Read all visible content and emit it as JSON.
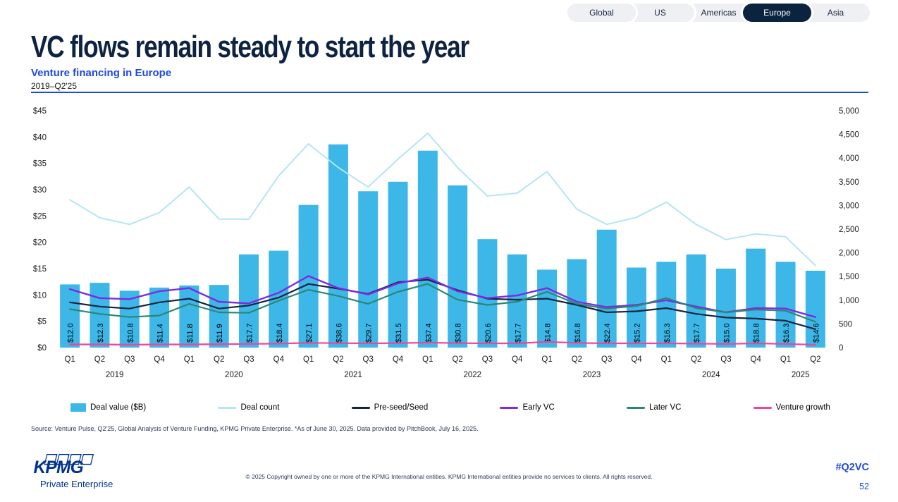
{
  "tabs": [
    {
      "label": "Global",
      "active": false
    },
    {
      "label": "US",
      "active": false
    },
    {
      "label": "Americas",
      "active": false
    },
    {
      "label": "Europe",
      "active": true
    },
    {
      "label": "Asia",
      "active": false
    }
  ],
  "header": {
    "title": "VC flows remain steady to start the year",
    "subtitle": "Venture financing in Europe",
    "period": "2019–Q2'25"
  },
  "colors": {
    "bar_blue": "#3cb7e8",
    "deal_count_blue": "#b5e4f7",
    "preseed_navy": "#16243d",
    "early_vc_purple": "#7c2be0",
    "later_vc_teal": "#2d8673",
    "venture_growth_pink": "#f5419f",
    "accent_blue": "#1e49e0",
    "kpmg_blue": "#00338d",
    "tab_active_navy": "#0c2340",
    "title_navy": "#0e2342"
  },
  "chart_data": {
    "type": "bar+line combo",
    "x_quarter_labels": [
      "Q1",
      "Q2",
      "Q3",
      "Q4",
      "Q1",
      "Q2",
      "Q3",
      "Q4",
      "Q1",
      "Q2",
      "Q3",
      "Q4",
      "Q1",
      "Q2",
      "Q3",
      "Q4",
      "Q1",
      "Q2",
      "Q3",
      "Q4",
      "Q1",
      "Q2",
      "Q3",
      "Q4",
      "Q1",
      "Q2"
    ],
    "x_year_groups": [
      {
        "label": "2019",
        "count": 4
      },
      {
        "label": "2020",
        "count": 4
      },
      {
        "label": "2021",
        "count": 4
      },
      {
        "label": "2022",
        "count": 4
      },
      {
        "label": "2023",
        "count": 4
      },
      {
        "label": "2024",
        "count": 4
      },
      {
        "label": "2025",
        "count": 2
      }
    ],
    "left_axis": {
      "min": 0,
      "max": 45,
      "ticks": [
        "$0",
        "$5",
        "$10",
        "$15",
        "$20",
        "$25",
        "$30",
        "$35",
        "$40",
        "$45"
      ]
    },
    "right_axis": {
      "min": 0,
      "max": 5000,
      "ticks": [
        "0",
        "500",
        "1,000",
        "1,500",
        "2,000",
        "2,500",
        "3,000",
        "3,500",
        "4,000",
        "4,500",
        "5,000"
      ]
    },
    "bars": {
      "name": "Deal value ($B)",
      "color": "#3cb7e8",
      "values": [
        12.0,
        12.3,
        10.8,
        11.4,
        11.8,
        11.9,
        17.7,
        18.4,
        27.1,
        38.6,
        29.7,
        31.5,
        37.4,
        30.8,
        20.6,
        17.7,
        14.8,
        16.8,
        22.4,
        15.2,
        16.3,
        17.7,
        15.0,
        18.8,
        16.3,
        14.6
      ],
      "labels": [
        "$12.0",
        "$12.3",
        "$10.8",
        "$11.4",
        "$11.8",
        "$11.9",
        "$17.7",
        "$18.4",
        "$27.1",
        "$38.6",
        "$29.7",
        "$31.5",
        "$37.4",
        "$30.8",
        "$20.6",
        "$17.7",
        "$14.8",
        "$16.8",
        "$22.4",
        "$15.2",
        "$16.3",
        "$17.7",
        "$15.0",
        "$18.8",
        "$16.3",
        "$14.6"
      ]
    },
    "lines": [
      {
        "name": "Deal count",
        "axis": "right",
        "color": "#b5e4f7",
        "width": 2,
        "values": [
          3120,
          2740,
          2600,
          2850,
          3390,
          2715,
          2710,
          3625,
          4300,
          3800,
          3390,
          3975,
          4525,
          3800,
          3200,
          3260,
          3715,
          2920,
          2600,
          2750,
          3070,
          2600,
          2280,
          2400,
          2340,
          1730
        ]
      },
      {
        "name": "Pre-seed/Seed",
        "axis": "left",
        "color": "#16243d",
        "width": 2.2,
        "values": [
          8.6,
          7.8,
          7.4,
          8.6,
          9.3,
          7.4,
          8.0,
          9.5,
          12.1,
          11.2,
          10.2,
          12.4,
          12.9,
          10.9,
          9.3,
          9.1,
          9.3,
          8.1,
          6.7,
          6.9,
          7.5,
          6.4,
          5.7,
          5.5,
          5.1,
          3.5
        ]
      },
      {
        "name": "Early VC",
        "axis": "left",
        "color": "#7c2be0",
        "width": 2.4,
        "values": [
          11.1,
          9.4,
          9.2,
          10.7,
          11.3,
          8.7,
          8.4,
          10.4,
          13.6,
          11.3,
          10.1,
          12.2,
          13.3,
          10.7,
          9.4,
          9.9,
          11.3,
          8.7,
          7.7,
          8.1,
          9.0,
          7.8,
          6.7,
          7.5,
          7.4,
          5.8
        ]
      },
      {
        "name": "Later VC",
        "axis": "left",
        "color": "#2d8673",
        "width": 2.2,
        "values": [
          7.3,
          6.4,
          5.8,
          6.1,
          8.3,
          6.7,
          6.6,
          8.9,
          11.0,
          9.8,
          8.3,
          10.6,
          12.1,
          9.1,
          8.1,
          8.7,
          10.6,
          8.3,
          7.4,
          7.9,
          9.4,
          7.5,
          6.7,
          7.2,
          7.0,
          4.9
        ]
      },
      {
        "name": "Venture growth",
        "axis": "left",
        "color": "#f5419f",
        "width": 2.2,
        "values": [
          0.6,
          0.6,
          0.55,
          0.6,
          0.6,
          0.65,
          0.7,
          0.75,
          0.9,
          0.85,
          0.8,
          0.85,
          0.95,
          0.85,
          0.8,
          0.8,
          1.1,
          0.9,
          0.8,
          0.8,
          0.8,
          0.75,
          0.7,
          0.8,
          0.7,
          0.55
        ]
      }
    ]
  },
  "legend": {
    "items": [
      {
        "label": "Deal value ($B)",
        "swatch": "bar",
        "color": "#3cb7e8"
      },
      {
        "label": "Deal count",
        "swatch": "line",
        "color": "#b5e4f7"
      },
      {
        "label": "Pre-seed/Seed",
        "swatch": "line",
        "color": "#16243d"
      },
      {
        "label": "Early VC",
        "swatch": "line",
        "color": "#7c2be0"
      },
      {
        "label": "Later VC",
        "swatch": "line",
        "color": "#2d8673"
      },
      {
        "label": "Venture growth",
        "swatch": "line",
        "color": "#f5419f"
      }
    ]
  },
  "source": "Source: Venture Pulse, Q2'25, Global Analysis of Venture Funding, KPMG Private Enterprise. *As of June 30, 2025. Data provided by PitchBook, July 16, 2025.",
  "footer": {
    "logo": "KPMG",
    "logo_sub": "Private Enterprise",
    "copyright": "© 2025 Copyright owned by one or more of the KPMG International entities. KPMG International entities provide no services to clients. All rights reserved.",
    "hashtag": "#Q2VC",
    "page_number": "52"
  }
}
